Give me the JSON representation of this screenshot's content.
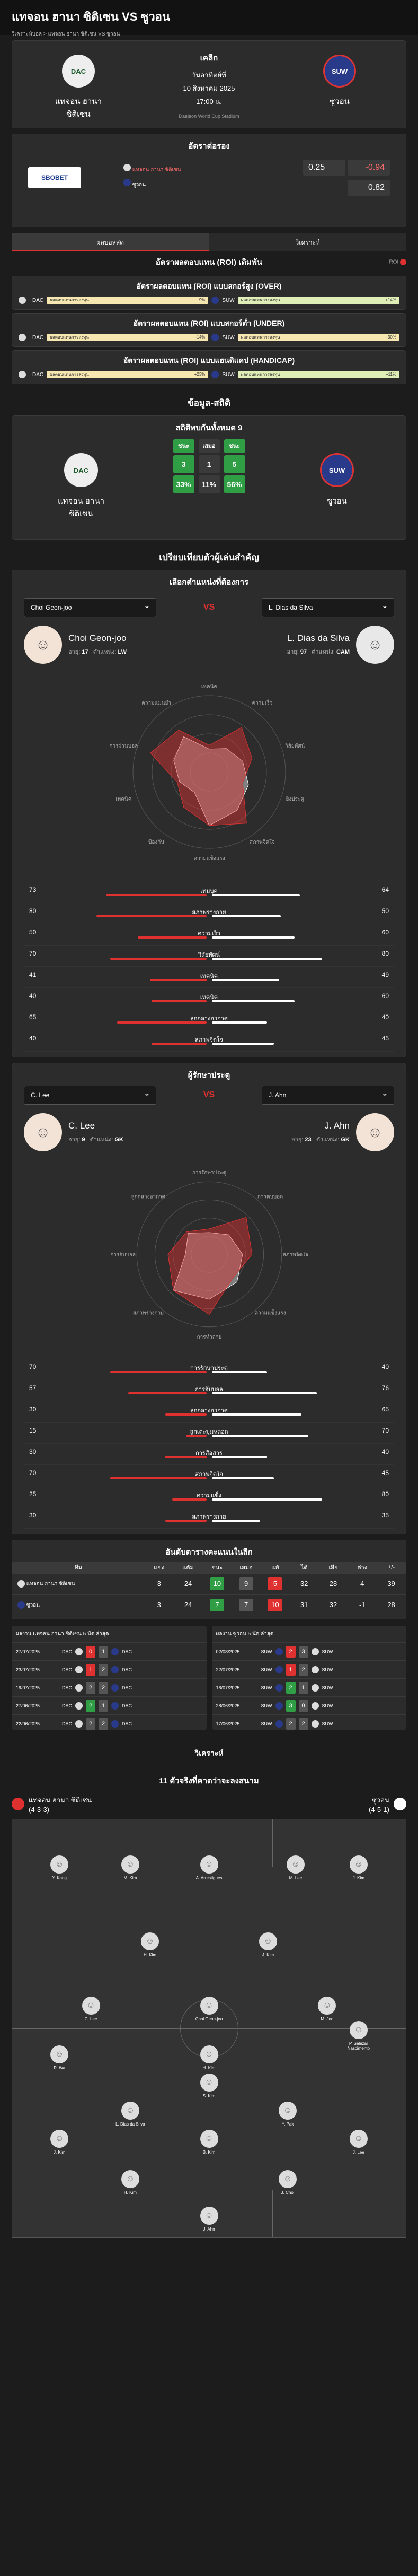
{
  "page": {
    "title": "แทจอน ฮานา ซิติเซน VS ซูวอน",
    "breadcrumb": [
      "วิเคราะห์บอล",
      ">",
      "แทจอน ฮานา ซิติเซน VS ซูวอน"
    ]
  },
  "match": {
    "league": "เคลีก",
    "date": "วันอาทิตย์ที่",
    "day": "10 สิงหาคม 2025",
    "time": "17:00 น.",
    "stadium": "Daejeon World Cup Stadium",
    "home": "แทจอน ฮานา ซิติเซน",
    "away": "ซูวอน",
    "home_short": "DAC",
    "away_short": "SUW"
  },
  "odds": {
    "title": "อัตราต่อรอง",
    "bookmaker": "SBOBET",
    "home_label": "แทจอน ฮานา ซิติเซน",
    "away_label": "ซูวอน",
    "line": "0.25",
    "home_odds": "-0.94",
    "away_odds": "0.82"
  },
  "tabs": [
    "ผลบอลสด",
    "วิเคราะห์"
  ],
  "roi": {
    "header": "อัตราผลตอบแทน (ROI) เดิมพัน",
    "toggle": "ROI",
    "groups": [
      {
        "title": "อัตราผลตอบแทน (ROI) แบบสกอร์สูง (OVER)",
        "left_label": "ผลตอบแทนการลงทุน",
        "left_val": "+9%",
        "right_label": "ผลตอบแทนการลงทุน",
        "right_val": "+14%"
      },
      {
        "title": "อัตราผลตอบแทน (ROI) แบบสกอร์ต่ำ (UNDER)",
        "left_label": "ผลตอบแทนการลงทุน",
        "left_val": "-14%",
        "right_label": "ผลตอบแทนการลงทุน",
        "right_val": "-30%"
      },
      {
        "title": "อัตราผลตอบแทน (ROI) แบบแฮนดิแคป (HANDICAP)",
        "left_label": "ผลตอบแทนการลงทุน",
        "left_val": "+23%",
        "right_label": "ผลตอบแทนการลงทุน",
        "right_val": "+11%"
      }
    ]
  },
  "h2h": {
    "section": "ข้อมูล-สถิติ",
    "title": "สถิติพบกันทั้งหมด 9",
    "win": "ชนะ",
    "draw": "เสมอ",
    "win2": "ชนะ",
    "home_w": "3",
    "draws": "1",
    "away_w": "5",
    "home_p": "33%",
    "draw_p": "11%",
    "away_p": "56%"
  },
  "compare": {
    "section": "เปรียบเทียบตัวผู้เล่นสำคัญ",
    "pick_title": "เลือกตำแหน่งที่ต้องการ",
    "vs": "VS"
  },
  "p1": {
    "left_sel": "Choi Geon-joo",
    "right_sel": "L. Dias da Silva",
    "left_name": "Choi Geon-joo",
    "right_name": "L. Dias da Silva",
    "age_l": "อายุ:",
    "age_lv": "17",
    "pos_l": "ตำแหน่ง:",
    "pos_lv": "LW",
    "age_r": "อายุ:",
    "age_rv": "97",
    "pos_r": "ตำแหน่ง:",
    "pos_rv": "CAM",
    "radar": [
      "เทคนิค",
      "ความเร็ว",
      "วิสัยทัศน์",
      "ยิงประตู",
      "สภาพจิตใจ",
      "ความแข็งแรง",
      "ป้องกัน",
      "เทคนิค",
      "การผ่านบอล",
      "ความแม่นยำ"
    ],
    "stats": [
      {
        "n": "เทมบุค",
        "l": "73",
        "r": "64"
      },
      {
        "n": "สภาพร่างกาย",
        "l": "80",
        "r": "50"
      },
      {
        "n": "ความเร็ว",
        "l": "50",
        "r": "60"
      },
      {
        "n": "วิสัยทัศน์",
        "l": "70",
        "r": "80"
      },
      {
        "n": "เทคนิค",
        "l": "41",
        "r": "49"
      },
      {
        "n": "เทคนิค",
        "l": "40",
        "r": "60"
      },
      {
        "n": "ลูกกลางอากาศ",
        "l": "65",
        "r": "40"
      },
      {
        "n": "สภาพจิตใจ",
        "l": "40",
        "r": "45"
      }
    ]
  },
  "p2": {
    "title": "ผู้รักษาประตู",
    "left_sel": "C. Lee",
    "right_sel": "J. Ahn",
    "left_name": "C. Lee",
    "right_name": "J. Ahn",
    "age_l": "อายุ:",
    "age_lv": "9",
    "pos_l": "ตำแหน่ง:",
    "pos_lv": "GK",
    "age_r": "อายุ:",
    "age_rv": "23",
    "pos_r": "ตำแหน่ง:",
    "pos_rv": "GK",
    "radar": [
      "การรักษาประตู",
      "การตบบอล",
      "สภาพจิตใจ",
      "ความแข็งแรง",
      "การทำลาย",
      "สภาพร่างกาย",
      "การจับบอล",
      "ลูกกลางอากาศ"
    ],
    "stats": [
      {
        "n": "การรักษาประตู",
        "l": "70",
        "r": "40"
      },
      {
        "n": "การจับบอล",
        "l": "57",
        "r": "76"
      },
      {
        "n": "ลูกกลางอากาศ",
        "l": "30",
        "r": "65"
      },
      {
        "n": "ลูกเตะมุมหลอก",
        "l": "15",
        "r": "70"
      },
      {
        "n": "การสื่อสาร",
        "l": "30",
        "r": "40"
      },
      {
        "n": "สภาพจิตใจ",
        "l": "70",
        "r": "45"
      },
      {
        "n": "ความแข็ง",
        "l": "25",
        "r": "80"
      },
      {
        "n": "สภาพร่างกาย",
        "l": "30",
        "r": "35"
      }
    ]
  },
  "table": {
    "title": "อันดับตารางคะแนนในลีก",
    "headers": [
      "ทีม",
      "",
      "แข่ง",
      "แต้ม",
      "ชนะ",
      "เสมอ",
      "แพ้",
      "ได้",
      "เสีย",
      "ต่าง",
      "+/-"
    ],
    "rows": [
      {
        "pos": "2",
        "team": "แทจอน ฮานา ซิติเซน",
        "p": "3",
        "pts": "24",
        "w": "10",
        "d": "9",
        "l": "5",
        "gf": "32",
        "ga": "28",
        "gd": "4",
        "x": "39"
      },
      {
        "pos": "",
        "team": "ซูวอน",
        "p": "3",
        "pts": "24",
        "w": "7",
        "d": "7",
        "l": "10",
        "gf": "31",
        "ga": "32",
        "gd": "-1",
        "x": "28"
      }
    ]
  },
  "recent": {
    "home_title": "ผลงาน แทจอน ฮานา ซิติเซน 5 นัด ล่าสุด",
    "away_title": "ผลงาน ซูวอน 5 นัด ล่าสุด",
    "home": [
      {
        "d": "27/07/2025",
        "a": "DAC",
        "s1": "0",
        "s2": "1",
        "b": "DAC"
      },
      {
        "d": "23/07/2025",
        "a": "DAC",
        "s1": "1",
        "s2": "2",
        "b": "DAC"
      },
      {
        "d": "19/07/2025",
        "a": "DAC",
        "s1": "2",
        "s2": "2",
        "b": "DAC"
      },
      {
        "d": "27/06/2025",
        "a": "DAC",
        "s1": "2",
        "s2": "1",
        "b": "DAC"
      },
      {
        "d": "22/06/2025",
        "a": "DAC",
        "s1": "2",
        "s2": "2",
        "b": "DAC"
      }
    ],
    "away": [
      {
        "d": "02/08/2025",
        "a": "SUW",
        "s1": "2",
        "s2": "3",
        "b": "SUW"
      },
      {
        "d": "22/07/2025",
        "a": "SUW",
        "s1": "1",
        "s2": "2",
        "b": "SUW"
      },
      {
        "d": "16/07/2025",
        "a": "SUW",
        "s1": "2",
        "s2": "1",
        "b": "SUW"
      },
      {
        "d": "28/06/2025",
        "a": "SUW",
        "s1": "3",
        "s2": "0",
        "b": "SUW"
      },
      {
        "d": "17/06/2025",
        "a": "SUW",
        "s1": "2",
        "s2": "2",
        "b": "SUW"
      }
    ]
  },
  "lineup": {
    "section": "วิเคราะห์",
    "title": "11 ตัวจริงที่คาดว่าจะลงสนาม",
    "home": "แทจอน ฮานา ซิติเซน",
    "home_f": "(4-3-3)",
    "away": "ซูวอน",
    "away_f": "(4-5-1)",
    "players": [
      "Y. Kang",
      "M. Kim",
      "A. Arrestigues",
      "M. Lee",
      "J. Kim",
      "H. Kim",
      "J. Kim",
      "C. Lee",
      "Choi Geon-joo",
      "M. Joo",
      "S. Kim",
      "P. Salazar Nascimento",
      "R. Wa",
      "H. Kim",
      "L. Dias da Silva",
      "Y. Pak",
      "J. Kim",
      "B. Kim",
      "J. Lee",
      "H. Kim",
      "J. Choi",
      "J. Ahn"
    ]
  },
  "colors": {
    "accent": "#e03131",
    "green": "#2f9e44"
  }
}
